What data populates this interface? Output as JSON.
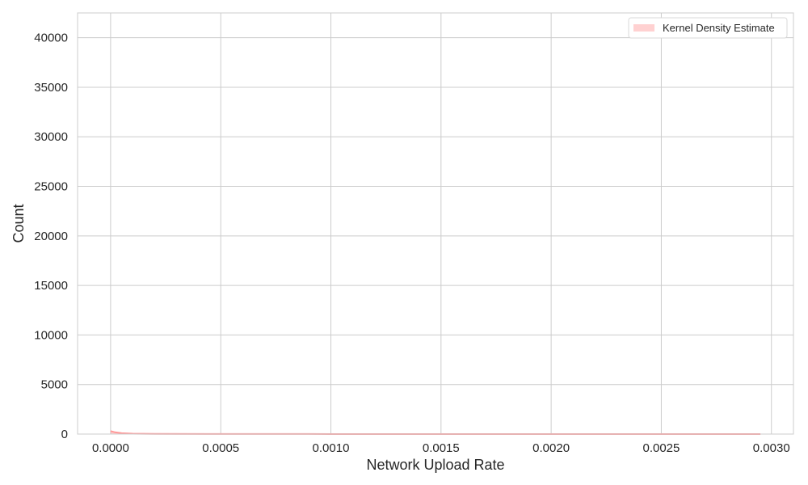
{
  "chart_data": {
    "type": "area",
    "title": "",
    "xlabel": "Network Upload Rate",
    "ylabel": "Count",
    "xlim": [
      -0.00015,
      0.0031
    ],
    "ylim": [
      0,
      42500
    ],
    "x_ticks": [
      0.0,
      0.0005,
      0.001,
      0.0015,
      0.002,
      0.0025,
      0.003
    ],
    "x_tick_labels": [
      "0.0000",
      "0.0005",
      "0.0010",
      "0.0015",
      "0.0020",
      "0.0025",
      "0.0030"
    ],
    "y_ticks": [
      0,
      5000,
      10000,
      15000,
      20000,
      25000,
      30000,
      35000,
      40000
    ],
    "y_tick_labels": [
      "0",
      "5000",
      "10000",
      "15000",
      "20000",
      "25000",
      "30000",
      "35000",
      "40000"
    ],
    "grid": true,
    "legend_position": "top-right",
    "series": [
      {
        "name": "Kernel Density Estimate",
        "color": "#ff9999",
        "fill_opacity": 0.45,
        "x": [
          0.0,
          2e-05,
          5e-05,
          0.0001,
          0.0002,
          0.0005,
          0.001,
          0.0015,
          0.002,
          0.0025,
          0.00295
        ],
        "y": [
          300,
          180,
          90,
          40,
          20,
          10,
          5,
          3,
          2,
          2,
          1
        ]
      }
    ]
  }
}
